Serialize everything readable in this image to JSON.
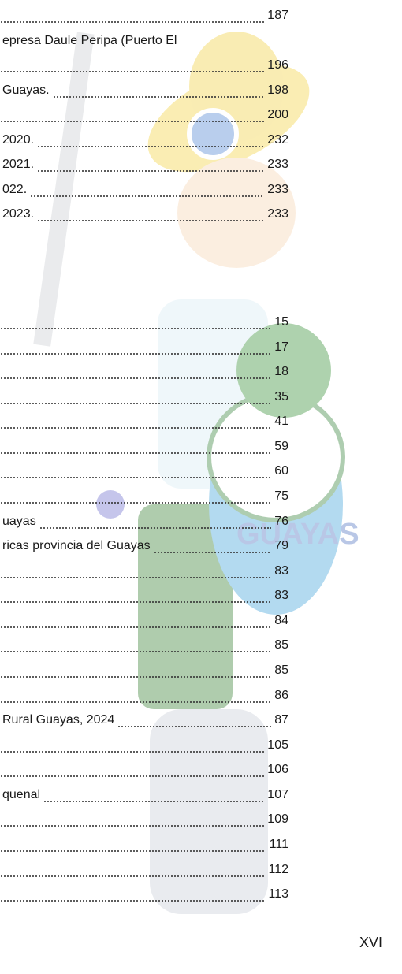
{
  "toc_top": [
    {
      "page": "187"
    },
    {
      "text": "epresa Daule Peripa (Puerto El"
    },
    {
      "page": "196"
    },
    {
      "text": "Guayas.",
      "page": "198"
    },
    {
      "page": "200"
    },
    {
      "text": "2020.",
      "page": "232"
    },
    {
      "text": "2021.",
      "page": "233"
    },
    {
      "text": "022.",
      "page": "233"
    },
    {
      "text": "2023.",
      "page": "233"
    }
  ],
  "toc_bottom": [
    {
      "page": "15"
    },
    {
      "page": "17"
    },
    {
      "page": "18"
    },
    {
      "page": "35"
    },
    {
      "page": "41"
    },
    {
      "page": "59"
    },
    {
      "page": "60"
    },
    {
      "page": "75"
    },
    {
      "text": "uayas",
      "page": "76"
    },
    {
      "text": "ricas provincia del Guayas",
      "page": "79"
    },
    {
      "page": "83"
    },
    {
      "page": "83"
    },
    {
      "page": "84"
    },
    {
      "page": "85"
    },
    {
      "page": "85"
    },
    {
      "page": "86"
    },
    {
      "text": "Rural Guayas, 2024",
      "page": "87"
    },
    {
      "page": "105"
    },
    {
      "page": "106"
    },
    {
      "text": "quenal",
      "page": "107"
    },
    {
      "page": "109"
    },
    {
      "page": "111"
    },
    {
      "page": "112"
    },
    {
      "page": "113"
    }
  ],
  "watermark": {
    "label": "GUAYAS"
  },
  "footer": {
    "page_number": "XVI"
  }
}
